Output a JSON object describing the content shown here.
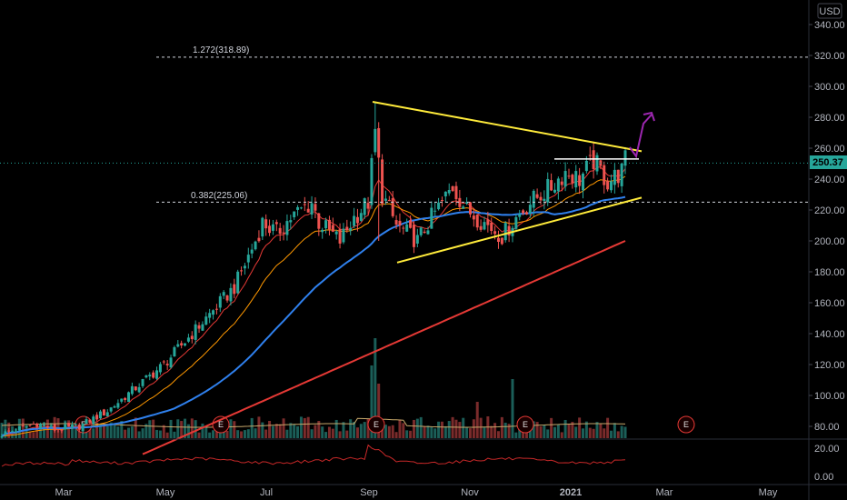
{
  "currency": "USD",
  "chart_data": {
    "type": "candlestick",
    "x_tick_labels": [
      "Mar",
      "May",
      "Jul",
      "Sep",
      "Nov",
      "2021",
      "Mar",
      "May"
    ],
    "y_tick_labels": [
      "80.00",
      "100.00",
      "120.00",
      "140.00",
      "160.00",
      "180.00",
      "200.00",
      "220.00",
      "240.00",
      "260.00",
      "280.00",
      "300.00",
      "320.00",
      "340.00"
    ],
    "ylim": [
      70,
      345
    ],
    "last_price": "250.37",
    "fib_levels": [
      {
        "label": "1.272(318.89)",
        "value": 318.89
      },
      {
        "label": "0.382(225.06)",
        "value": 225.06
      }
    ],
    "triangle": {
      "upper": [
        [
          0.0,
          290
        ],
        [
          1.0,
          258
        ]
      ],
      "lower": [
        [
          0.0,
          186
        ],
        [
          1.0,
          228
        ]
      ]
    },
    "earnings_marker_label": "E",
    "oscillator_tick_labels": [
      "20.00",
      "0.00"
    ],
    "colors": {
      "up": "#26a69a",
      "down": "#ef5350",
      "ma_blue": "#2f80ed",
      "ma_red": "#e53935",
      "ma_orange": "#ff9800",
      "triangle": "#ffeb3b",
      "arrow": "#9c27b0",
      "price_tag": "#26a69a"
    }
  }
}
